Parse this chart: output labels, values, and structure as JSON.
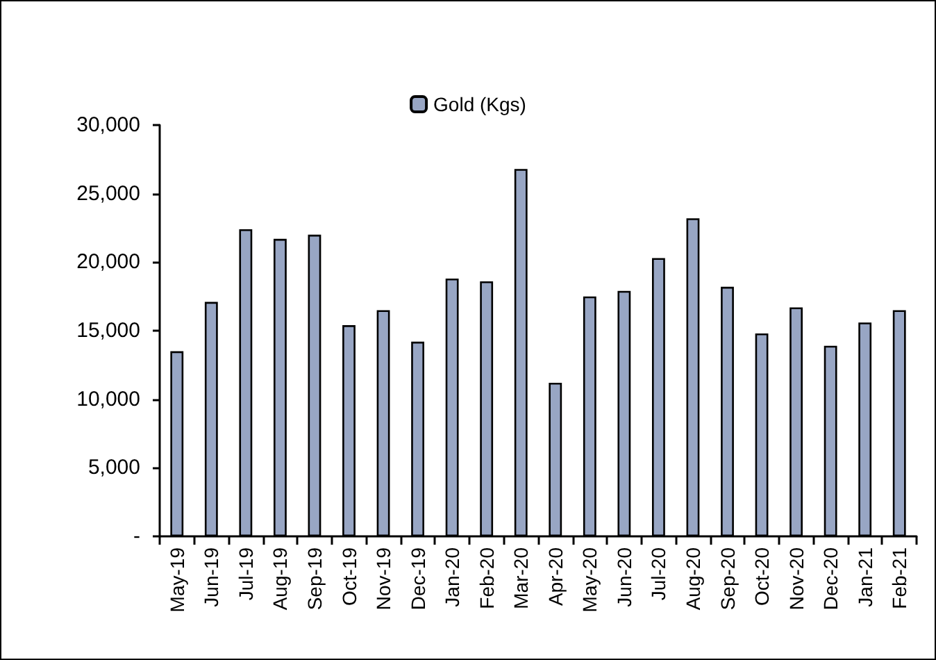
{
  "chart_data": {
    "type": "bar",
    "categories": [
      "May-19",
      "Jun-19",
      "Jul-19",
      "Aug-19",
      "Sep-19",
      "Oct-19",
      "Nov-19",
      "Dec-19",
      "Jan-20",
      "Feb-20",
      "Mar-20",
      "Apr-20",
      "May-20",
      "Jun-20",
      "Jul-20",
      "Aug-20",
      "Sep-20",
      "Oct-20",
      "Nov-20",
      "Dec-20",
      "Jan-21",
      "Feb-21"
    ],
    "series": [
      {
        "name": "Gold (Kgs)",
        "color": "#98a6c4",
        "values": [
          13500,
          17100,
          22400,
          21700,
          22000,
          15400,
          16500,
          14200,
          18800,
          18600,
          26800,
          11200,
          17500,
          17900,
          20300,
          23200,
          18200,
          14800,
          16700,
          13900,
          15600,
          16500
        ]
      }
    ],
    "ylim": [
      0,
      30000
    ],
    "yticks": [
      {
        "value": 0,
        "label": "-"
      },
      {
        "value": 5000,
        "label": "5,000"
      },
      {
        "value": 10000,
        "label": "10,000"
      },
      {
        "value": 15000,
        "label": "15,000"
      },
      {
        "value": 20000,
        "label": "20,000"
      },
      {
        "value": 25000,
        "label": "25,000"
      },
      {
        "value": 30000,
        "label": "30,000"
      }
    ],
    "grid": false,
    "legend": "top"
  }
}
